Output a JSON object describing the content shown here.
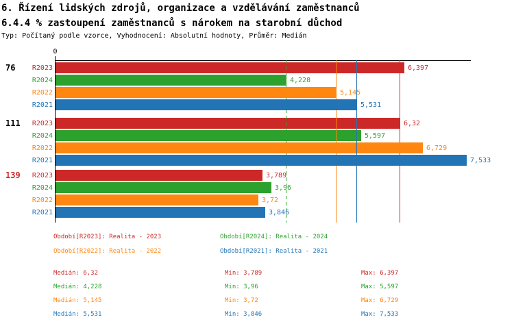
{
  "title": "6. Řízení lidských zdrojů, organizace a vzdělávání zaměstnanců",
  "subtitle": "6.4.4 % zastoupení zaměstnanců s nárokem na starobní důchod",
  "meta": "Typ: Počítaný podle vzorce, Vyhodnocení: Absolutní hodnoty, Průměr: Medián",
  "colors": {
    "red": "#cd2828",
    "green": "#2da12d",
    "orange": "#ff860f",
    "blue": "#2274b5",
    "black": "#000000"
  },
  "chart_data": {
    "type": "bar",
    "orientation": "horizontal",
    "x_axis": {
      "min": 0,
      "max": 7.63,
      "zero_label": "0",
      "gridlines": false
    },
    "series_order": [
      "R2023",
      "R2024",
      "R2022",
      "R2021"
    ],
    "groups": [
      {
        "label": "76",
        "label_color_key": "black",
        "bars": [
          {
            "series": "R2023",
            "color_key": "red",
            "value": 6.397,
            "label": "6,397"
          },
          {
            "series": "R2024",
            "color_key": "green",
            "value": 4.228,
            "label": "4,228"
          },
          {
            "series": "R2022",
            "color_key": "orange",
            "value": 5.145,
            "label": "5,145"
          },
          {
            "series": "R2021",
            "color_key": "blue",
            "value": 5.531,
            "label": "5,531"
          }
        ]
      },
      {
        "label": "111",
        "label_color_key": "black",
        "bars": [
          {
            "series": "R2023",
            "color_key": "red",
            "value": 6.32,
            "label": "6,32"
          },
          {
            "series": "R2024",
            "color_key": "green",
            "value": 5.597,
            "label": "5,597"
          },
          {
            "series": "R2022",
            "color_key": "orange",
            "value": 6.729,
            "label": "6,729"
          },
          {
            "series": "R2021",
            "color_key": "blue",
            "value": 7.533,
            "label": "7,533"
          }
        ]
      },
      {
        "label": "139",
        "label_color_key": "red",
        "bars": [
          {
            "series": "R2023",
            "color_key": "red",
            "value": 3.789,
            "label": "3,789"
          },
          {
            "series": "R2024",
            "color_key": "green",
            "value": 3.96,
            "label": "3,96"
          },
          {
            "series": "R2022",
            "color_key": "orange",
            "value": 3.72,
            "label": "3,72"
          },
          {
            "series": "R2021",
            "color_key": "blue",
            "value": 3.846,
            "label": "3,846"
          }
        ]
      }
    ],
    "median_lines": [
      {
        "series": "R2023",
        "color_key": "red",
        "value": 6.32,
        "dashed": false
      },
      {
        "series": "R2024",
        "color_key": "green",
        "value": 4.228,
        "dashed": true
      },
      {
        "series": "R2022",
        "color_key": "orange",
        "value": 5.145,
        "dashed": false
      },
      {
        "series": "R2021",
        "color_key": "blue",
        "value": 5.531,
        "dashed": false
      }
    ]
  },
  "legend": [
    {
      "color_key": "red",
      "text": "Období[R2023]: Realita - 2023"
    },
    {
      "color_key": "green",
      "text": "Období[R2024]: Realita - 2024"
    },
    {
      "color_key": "orange",
      "text": "Období[R2022]: Realita - 2022"
    },
    {
      "color_key": "blue",
      "text": "Období[R2021]: Realita - 2021"
    }
  ],
  "stats": [
    {
      "color_key": "red",
      "median": "Medián: 6,32",
      "min": "Min: 3,789",
      "max": "Max: 6,397"
    },
    {
      "color_key": "green",
      "median": "Medián: 4,228",
      "min": "Min: 3,96",
      "max": "Max: 5,597"
    },
    {
      "color_key": "orange",
      "median": "Medián: 5,145",
      "min": "Min: 3,72",
      "max": "Max: 6,729"
    },
    {
      "color_key": "blue",
      "median": "Medián: 5,531",
      "min": "Min: 3,846",
      "max": "Max: 7,533"
    }
  ]
}
